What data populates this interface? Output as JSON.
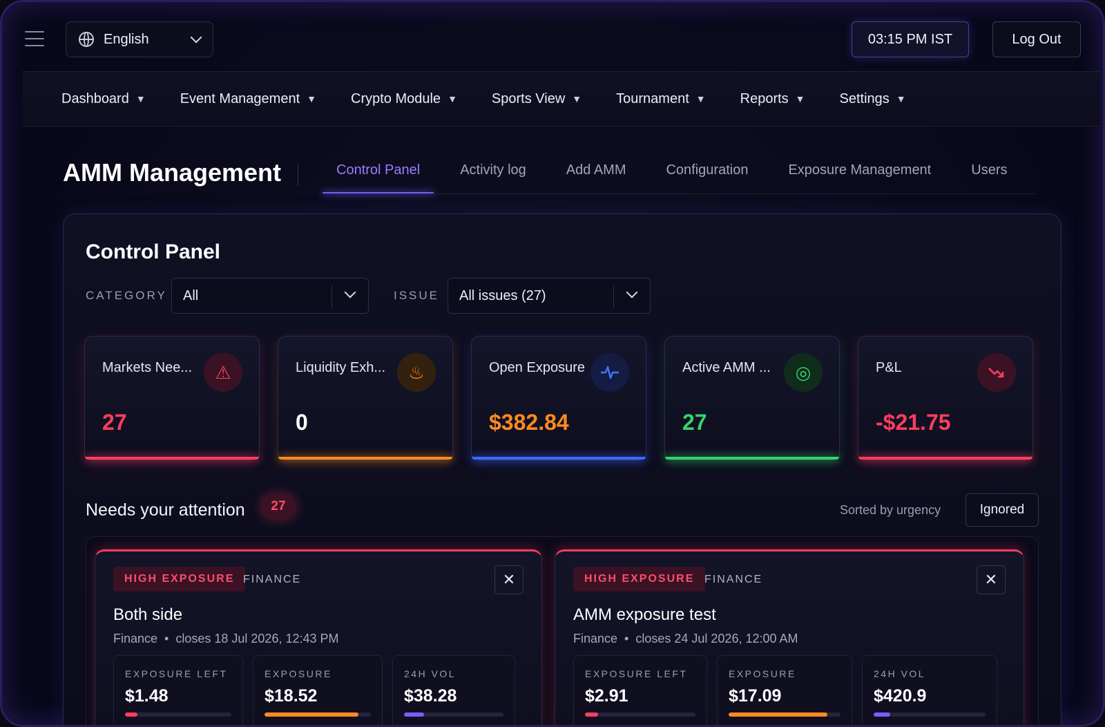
{
  "topbar": {
    "language": "English",
    "time": "03:15 PM IST",
    "logout_label": "Log Out"
  },
  "menu": [
    {
      "label": "Dashboard"
    },
    {
      "label": "Event Management"
    },
    {
      "label": "Crypto Module"
    },
    {
      "label": "Sports View"
    },
    {
      "label": "Tournament"
    },
    {
      "label": "Reports"
    },
    {
      "label": "Settings"
    }
  ],
  "page": {
    "title": "AMM Management",
    "tabs": [
      {
        "label": "Control Panel",
        "active": true
      },
      {
        "label": "Activity log"
      },
      {
        "label": "Add AMM"
      },
      {
        "label": "Configuration"
      },
      {
        "label": "Exposure Management"
      },
      {
        "label": "Users"
      }
    ]
  },
  "panel": {
    "title": "Control Panel",
    "filters": {
      "category_label": "CATEGORY",
      "category_value": "All",
      "issue_label": "ISSUE",
      "issue_value": "All issues (27)"
    },
    "stats": [
      {
        "label": "Markets Nee...",
        "value": "27",
        "icon": "warning-icon",
        "color": "#ff3d5e"
      },
      {
        "label": "Liquidity Exh...",
        "value": "0",
        "icon": "fire-icon",
        "color": "#ff8a1f"
      },
      {
        "label": "Open Exposure",
        "value": "$382.84",
        "icon": "pulse-icon",
        "color": "#3d6bff"
      },
      {
        "label": "Active AMM ...",
        "value": "27",
        "icon": "target-icon",
        "color": "#35d46a"
      },
      {
        "label": "P&L",
        "value": "-$21.75",
        "icon": "trend-down-icon",
        "color": "#ff3d5e"
      }
    ],
    "attention": {
      "title": "Needs your attention",
      "count": "27",
      "sorted_label": "Sorted by urgency",
      "ignored_label": "Ignored"
    },
    "issues": [
      {
        "tag": "HIGH EXPOSURE",
        "category": "FINANCE",
        "name": "Both side",
        "category_name": "Finance",
        "closes": "closes 18 Jul 2026, 12:43 PM",
        "metrics": [
          {
            "label": "EXPOSURE LEFT",
            "value": "$1.48",
            "fill": 0.12,
            "color": "#ff3d5e"
          },
          {
            "label": "EXPOSURE",
            "value": "$18.52",
            "fill": 0.88,
            "color": "#ff8a1f"
          },
          {
            "label": "24H VOL",
            "value": "$38.28",
            "fill": 0.2,
            "color": "#7c5cff"
          }
        ]
      },
      {
        "tag": "HIGH EXPOSURE",
        "category": "FINANCE",
        "name": "AMM exposure test",
        "category_name": "Finance",
        "closes": "closes 24 Jul 2026, 12:00 AM",
        "metrics": [
          {
            "label": "EXPOSURE LEFT",
            "value": "$2.91",
            "fill": 0.12,
            "color": "#ff3d5e"
          },
          {
            "label": "EXPOSURE",
            "value": "$17.09",
            "fill": 0.88,
            "color": "#ff8a1f"
          },
          {
            "label": "24H VOL",
            "value": "$420.9",
            "fill": 0.15,
            "color": "#7c5cff"
          }
        ]
      }
    ]
  }
}
